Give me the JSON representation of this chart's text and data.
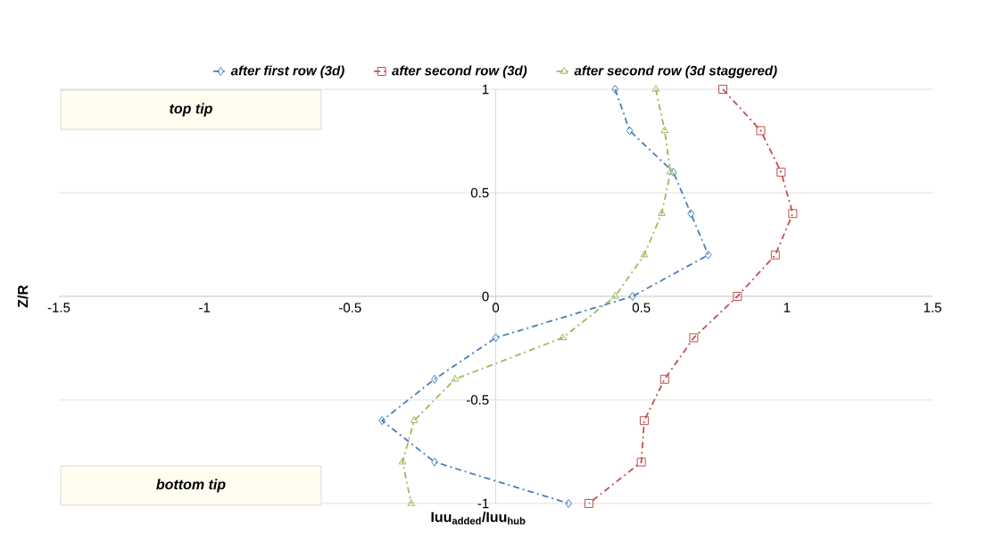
{
  "chart_data": {
    "type": "line",
    "xlabel": "Iuu$_{added}$/Iuu$_{hub}$",
    "ylabel": "Z/R",
    "annotations": [
      "top tip",
      "bottom tip"
    ],
    "xlim": [
      -1.5,
      1.5
    ],
    "ylim": [
      -1,
      1
    ],
    "xticks": [
      -1.5,
      -1,
      -0.5,
      0,
      0.5,
      1,
      1.5
    ],
    "yticks": [
      -1,
      -0.5,
      0,
      0.5,
      1
    ],
    "grid": "y",
    "legend": "top",
    "line_style": "dashed",
    "series": [
      {
        "name": "after first row (3d)",
        "color": "#4a7ebb",
        "marker": "diamond",
        "x": [
          0.41,
          0.46,
          0.61,
          0.67,
          0.73,
          0.47,
          0.0,
          -0.21,
          -0.39,
          -0.21,
          0.25
        ],
        "values": [
          1,
          0.8,
          0.6,
          0.4,
          0.2,
          0,
          -0.2,
          -0.4,
          -0.6,
          -0.8,
          -1
        ]
      },
      {
        "name": "after second row (3d)",
        "color": "#c0504d",
        "marker": "square",
        "x": [
          0.78,
          0.91,
          0.98,
          1.02,
          0.96,
          0.83,
          0.68,
          0.58,
          0.51,
          0.5,
          0.32
        ],
        "values": [
          1,
          0.8,
          0.6,
          0.4,
          0.2,
          0,
          -0.2,
          -0.4,
          -0.6,
          -0.8,
          -1
        ]
      },
      {
        "name": "after second row (3d staggered)",
        "color": "#9bbb59",
        "marker": "triangle",
        "x": [
          0.55,
          0.58,
          0.6,
          0.57,
          0.51,
          0.41,
          0.23,
          -0.14,
          -0.28,
          -0.32,
          -0.29
        ],
        "values": [
          1,
          0.8,
          0.6,
          0.4,
          0.2,
          0,
          -0.2,
          -0.4,
          -0.6,
          -0.8,
          -1
        ]
      }
    ]
  }
}
